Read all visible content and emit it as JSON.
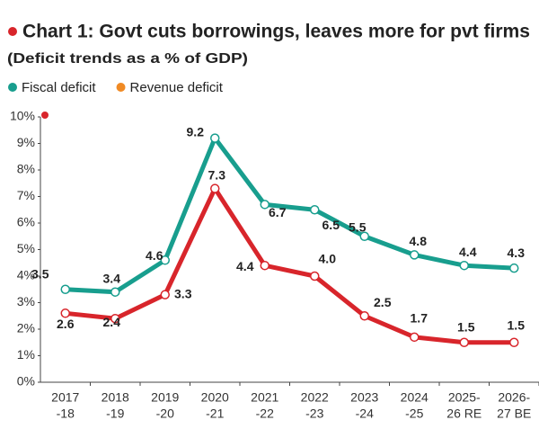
{
  "chart_data": {
    "type": "line",
    "title": "Chart 1: Govt cuts borrowings, leaves more for pvt firms",
    "subtitle": "(Deficit trends as a % of GDP)",
    "categories": [
      [
        "2017",
        "-18"
      ],
      [
        "2018",
        "-19"
      ],
      [
        "2019",
        "-20"
      ],
      [
        "2020",
        "-21"
      ],
      [
        "2021",
        "-22"
      ],
      [
        "2022",
        "-23"
      ],
      [
        "2023",
        "-24"
      ],
      [
        "2024",
        "-25"
      ],
      [
        "2025-",
        "26 RE"
      ],
      [
        "2026-",
        "27 BE"
      ]
    ],
    "series": [
      {
        "name": "Fiscal deficit",
        "color": "#189e8e",
        "legend_color": "#189e8e",
        "values": [
          3.5,
          3.4,
          4.6,
          9.2,
          6.7,
          6.5,
          5.5,
          4.8,
          4.4,
          4.3
        ],
        "value_labels": [
          "3.5",
          "3.4",
          "4.6",
          "9.2",
          "6.7",
          "6.5",
          "5.5",
          "4.8",
          "4.4",
          "4.3"
        ]
      },
      {
        "name": "Revenue deficit",
        "color": "#d8252b",
        "legend_color": "#f08a24",
        "values": [
          2.6,
          2.4,
          3.3,
          7.3,
          4.4,
          4.0,
          2.5,
          1.7,
          1.5,
          1.5
        ],
        "value_labels": [
          "2.6",
          "2.4",
          "3.3",
          "7.3",
          "4.4",
          "4.0",
          "2.5",
          "1.7",
          "1.5",
          "1.5"
        ]
      }
    ],
    "ylim": [
      0,
      10
    ],
    "yticks": [
      {
        "value": 0,
        "label": "0%"
      },
      {
        "value": 1,
        "label": "1%"
      },
      {
        "value": 2,
        "label": "2%"
      },
      {
        "value": 3,
        "label": "3%"
      },
      {
        "value": 4,
        "label": "4%"
      },
      {
        "value": 5,
        "label": "5%"
      },
      {
        "value": 6,
        "label": "6%"
      },
      {
        "value": 7,
        "label": "7%"
      },
      {
        "value": 8,
        "label": "8%"
      },
      {
        "value": 9,
        "label": "9%"
      },
      {
        "value": 10,
        "label": "10%"
      }
    ],
    "grid": false
  }
}
